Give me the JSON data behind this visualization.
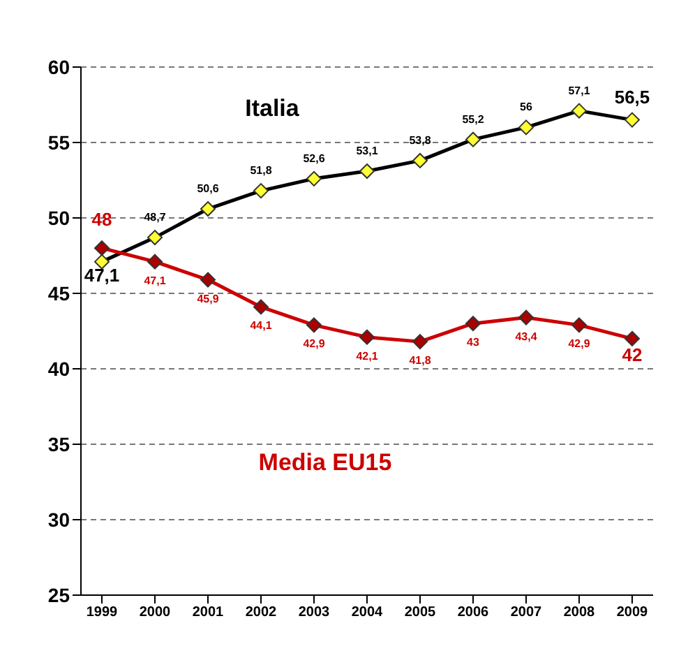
{
  "chart_data": {
    "type": "line",
    "categories": [
      "1999",
      "2000",
      "2001",
      "2002",
      "2003",
      "2004",
      "2005",
      "2006",
      "2007",
      "2008",
      "2009"
    ],
    "series": [
      {
        "name": "Italia",
        "color": "#000000",
        "values": [
          47.1,
          48.7,
          50.6,
          51.8,
          52.6,
          53.1,
          53.8,
          55.2,
          56,
          57.1,
          56.5
        ],
        "value_labels": [
          "47,1",
          "48,7",
          "50,6",
          "51,8",
          "52,6",
          "53,1",
          "53,8",
          "55,2",
          "56",
          "57,1",
          "56,5"
        ]
      },
      {
        "name": "Media EU15",
        "color": "#cc0000",
        "values": [
          48,
          47.1,
          45.9,
          44.1,
          42.9,
          42.1,
          41.8,
          43,
          43.4,
          42.9,
          42
        ],
        "value_labels": [
          "48",
          "47,1",
          "45,9",
          "44,1",
          "42,9",
          "42,1",
          "41,8",
          "43",
          "43,4",
          "42,9",
          "42"
        ]
      }
    ],
    "ylim": [
      25,
      60
    ],
    "yticks": [
      25,
      30,
      35,
      40,
      45,
      50,
      55,
      60
    ],
    "grid": "y",
    "legend": false,
    "marker": "diamond",
    "line_style": "solid"
  }
}
